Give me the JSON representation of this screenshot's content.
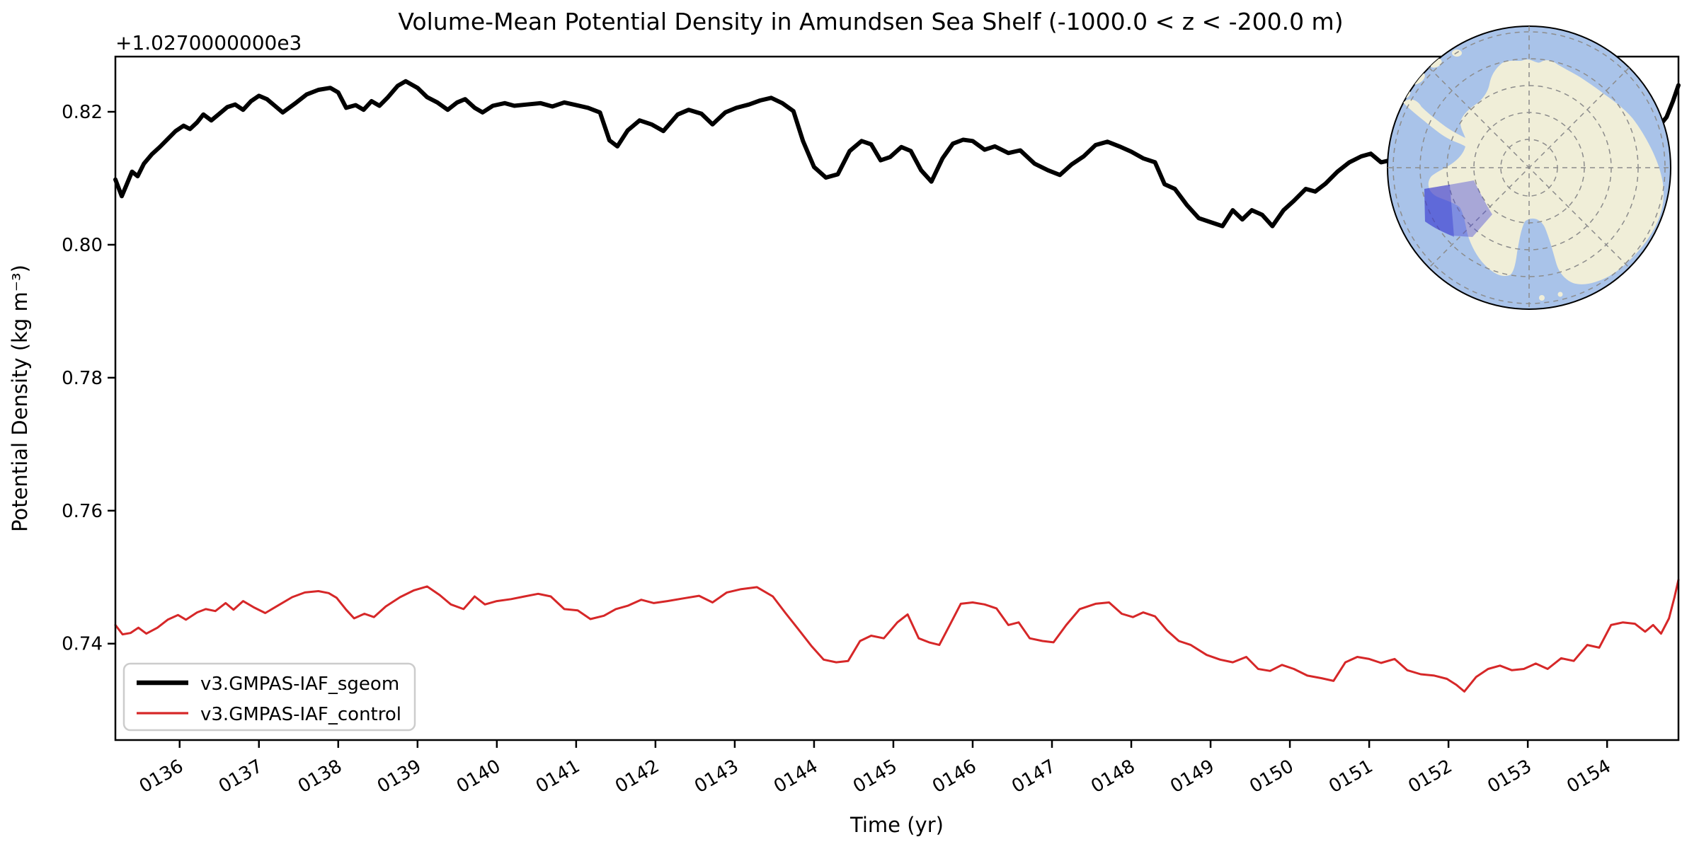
{
  "figure": {
    "title": "Volume-Mean Potential Density in Amundsen Sea Shelf (-1000.0 < z < -200.0 m)",
    "offset_text": "+1.0270000000e3",
    "xlabel": "Time (yr)",
    "ylabel": "Potential Density (kg m⁻³)"
  },
  "chart_data": {
    "type": "line",
    "title": "Volume-Mean Potential Density in Amundsen Sea Shelf (-1000.0 < z < -200.0 m)",
    "xlabel": "Time (yr)",
    "ylabel": "Potential Density (kg m⁻³)",
    "y_axis_offset": 1027.0,
    "y_offset_label": "+1.0270000000e3",
    "xlim": [
      135.19,
      154.9
    ],
    "ylim": [
      0.7255,
      0.8283
    ],
    "grid": false,
    "legend_position": "lower left",
    "x_tick_values": [
      136,
      137,
      138,
      139,
      140,
      141,
      142,
      143,
      144,
      145,
      146,
      147,
      148,
      149,
      150,
      151,
      152,
      153,
      154
    ],
    "x_tick_labels": [
      "0136",
      "0137",
      "0138",
      "0139",
      "0140",
      "0141",
      "0142",
      "0143",
      "0144",
      "0145",
      "0146",
      "0147",
      "0148",
      "0149",
      "0150",
      "0151",
      "0152",
      "0153",
      "0154"
    ],
    "x_tick_rotation_deg": 30,
    "y_tick_values": [
      0.82,
      0.8,
      0.78,
      0.76,
      0.74
    ],
    "y_tick_labels": [
      "0.82",
      "0.80",
      "0.78",
      "0.76",
      "0.74"
    ],
    "series": [
      {
        "name": "v3.GMPAS-IAF_sgeom",
        "color": "#000000",
        "linewidth": 6,
        "points": [
          [
            135.19,
            0.8098
          ],
          [
            135.27,
            0.8073
          ],
          [
            135.33,
            0.809
          ],
          [
            135.4,
            0.811
          ],
          [
            135.47,
            0.8103
          ],
          [
            135.55,
            0.8122
          ],
          [
            135.65,
            0.8136
          ],
          [
            135.75,
            0.8147
          ],
          [
            135.85,
            0.8159
          ],
          [
            135.95,
            0.8171
          ],
          [
            136.05,
            0.8179
          ],
          [
            136.13,
            0.8174
          ],
          [
            136.22,
            0.8184
          ],
          [
            136.3,
            0.8196
          ],
          [
            136.4,
            0.8187
          ],
          [
            136.5,
            0.8197
          ],
          [
            136.6,
            0.8207
          ],
          [
            136.7,
            0.8211
          ],
          [
            136.8,
            0.8203
          ],
          [
            136.9,
            0.8216
          ],
          [
            137.0,
            0.8224
          ],
          [
            137.1,
            0.8219
          ],
          [
            137.2,
            0.8209
          ],
          [
            137.3,
            0.8199
          ],
          [
            137.45,
            0.8212
          ],
          [
            137.6,
            0.8226
          ],
          [
            137.75,
            0.8233
          ],
          [
            137.9,
            0.8236
          ],
          [
            138.0,
            0.8229
          ],
          [
            138.1,
            0.8206
          ],
          [
            138.22,
            0.821
          ],
          [
            138.32,
            0.8203
          ],
          [
            138.42,
            0.8216
          ],
          [
            138.52,
            0.8209
          ],
          [
            138.62,
            0.8221
          ],
          [
            138.75,
            0.8239
          ],
          [
            138.85,
            0.8246
          ],
          [
            139.0,
            0.8236
          ],
          [
            139.12,
            0.8222
          ],
          [
            139.25,
            0.8214
          ],
          [
            139.38,
            0.8203
          ],
          [
            139.5,
            0.8214
          ],
          [
            139.6,
            0.8219
          ],
          [
            139.72,
            0.8206
          ],
          [
            139.82,
            0.8199
          ],
          [
            139.95,
            0.8209
          ],
          [
            140.1,
            0.8213
          ],
          [
            140.22,
            0.8209
          ],
          [
            140.38,
            0.8211
          ],
          [
            140.55,
            0.8213
          ],
          [
            140.7,
            0.8208
          ],
          [
            140.85,
            0.8214
          ],
          [
            141.0,
            0.821
          ],
          [
            141.15,
            0.8206
          ],
          [
            141.3,
            0.8199
          ],
          [
            141.42,
            0.8157
          ],
          [
            141.52,
            0.8148
          ],
          [
            141.65,
            0.8172
          ],
          [
            141.8,
            0.8187
          ],
          [
            141.95,
            0.8181
          ],
          [
            142.1,
            0.8171
          ],
          [
            142.28,
            0.8196
          ],
          [
            142.42,
            0.8203
          ],
          [
            142.58,
            0.8197
          ],
          [
            142.72,
            0.8181
          ],
          [
            142.88,
            0.8199
          ],
          [
            143.02,
            0.8206
          ],
          [
            143.18,
            0.8211
          ],
          [
            143.32,
            0.8217
          ],
          [
            143.46,
            0.8221
          ],
          [
            143.6,
            0.8213
          ],
          [
            143.74,
            0.8201
          ],
          [
            143.86,
            0.8156
          ],
          [
            144.0,
            0.8117
          ],
          [
            144.15,
            0.8101
          ],
          [
            144.3,
            0.8106
          ],
          [
            144.45,
            0.8141
          ],
          [
            144.6,
            0.8156
          ],
          [
            144.72,
            0.8151
          ],
          [
            144.84,
            0.8127
          ],
          [
            144.96,
            0.8132
          ],
          [
            145.1,
            0.8147
          ],
          [
            145.22,
            0.8141
          ],
          [
            145.35,
            0.8112
          ],
          [
            145.48,
            0.8095
          ],
          [
            145.62,
            0.813
          ],
          [
            145.75,
            0.8152
          ],
          [
            145.88,
            0.8158
          ],
          [
            146.0,
            0.8156
          ],
          [
            146.15,
            0.8143
          ],
          [
            146.28,
            0.8148
          ],
          [
            146.45,
            0.8138
          ],
          [
            146.6,
            0.8142
          ],
          [
            146.78,
            0.8122
          ],
          [
            146.95,
            0.8112
          ],
          [
            147.1,
            0.8105
          ],
          [
            147.25,
            0.8121
          ],
          [
            147.4,
            0.8133
          ],
          [
            147.55,
            0.815
          ],
          [
            147.7,
            0.8155
          ],
          [
            147.85,
            0.8148
          ],
          [
            148.0,
            0.814
          ],
          [
            148.15,
            0.813
          ],
          [
            148.3,
            0.8124
          ],
          [
            148.42,
            0.8091
          ],
          [
            148.55,
            0.8084
          ],
          [
            148.7,
            0.806
          ],
          [
            148.85,
            0.804
          ],
          [
            149.0,
            0.8034
          ],
          [
            149.15,
            0.8028
          ],
          [
            149.28,
            0.8052
          ],
          [
            149.4,
            0.8038
          ],
          [
            149.52,
            0.8052
          ],
          [
            149.65,
            0.8045
          ],
          [
            149.78,
            0.8028
          ],
          [
            149.92,
            0.8052
          ],
          [
            150.05,
            0.8066
          ],
          [
            150.2,
            0.8084
          ],
          [
            150.32,
            0.808
          ],
          [
            150.45,
            0.8092
          ],
          [
            150.6,
            0.811
          ],
          [
            150.75,
            0.8124
          ],
          [
            150.9,
            0.8133
          ],
          [
            151.02,
            0.8137
          ],
          [
            151.15,
            0.8124
          ],
          [
            151.3,
            0.8128
          ],
          [
            151.45,
            0.812
          ],
          [
            151.6,
            0.8107
          ],
          [
            151.75,
            0.8101
          ],
          [
            151.95,
            0.8106
          ],
          [
            152.3,
            0.811
          ],
          [
            152.7,
            0.8118
          ],
          [
            153.1,
            0.8128
          ],
          [
            153.5,
            0.8138
          ],
          [
            153.9,
            0.8148
          ],
          [
            154.3,
            0.8158
          ],
          [
            154.6,
            0.817
          ],
          [
            154.75,
            0.8192
          ],
          [
            154.83,
            0.8216
          ],
          [
            154.9,
            0.824
          ]
        ]
      },
      {
        "name": "v3.GMPAS-IAF_control",
        "color": "#d62728",
        "linewidth": 3,
        "points": [
          [
            135.19,
            0.7428
          ],
          [
            135.28,
            0.7414
          ],
          [
            135.38,
            0.7416
          ],
          [
            135.48,
            0.7424
          ],
          [
            135.58,
            0.7415
          ],
          [
            135.72,
            0.7424
          ],
          [
            135.85,
            0.7436
          ],
          [
            135.98,
            0.7443
          ],
          [
            136.08,
            0.7436
          ],
          [
            136.22,
            0.7447
          ],
          [
            136.33,
            0.7452
          ],
          [
            136.45,
            0.7449
          ],
          [
            136.58,
            0.7461
          ],
          [
            136.68,
            0.7451
          ],
          [
            136.8,
            0.7464
          ],
          [
            136.93,
            0.7455
          ],
          [
            137.08,
            0.7446
          ],
          [
            137.25,
            0.7458
          ],
          [
            137.42,
            0.747
          ],
          [
            137.58,
            0.7477
          ],
          [
            137.75,
            0.7479
          ],
          [
            137.88,
            0.7476
          ],
          [
            137.98,
            0.7469
          ],
          [
            138.1,
            0.7451
          ],
          [
            138.2,
            0.7438
          ],
          [
            138.33,
            0.7445
          ],
          [
            138.45,
            0.744
          ],
          [
            138.6,
            0.7456
          ],
          [
            138.78,
            0.747
          ],
          [
            138.95,
            0.748
          ],
          [
            139.12,
            0.7486
          ],
          [
            139.28,
            0.7473
          ],
          [
            139.42,
            0.7459
          ],
          [
            139.58,
            0.7452
          ],
          [
            139.72,
            0.7471
          ],
          [
            139.85,
            0.7459
          ],
          [
            140.0,
            0.7464
          ],
          [
            140.18,
            0.7467
          ],
          [
            140.35,
            0.7471
          ],
          [
            140.52,
            0.7475
          ],
          [
            140.68,
            0.7471
          ],
          [
            140.85,
            0.7452
          ],
          [
            141.02,
            0.745
          ],
          [
            141.18,
            0.7437
          ],
          [
            141.35,
            0.7442
          ],
          [
            141.5,
            0.7452
          ],
          [
            141.65,
            0.7457
          ],
          [
            141.82,
            0.7466
          ],
          [
            141.98,
            0.7461
          ],
          [
            142.15,
            0.7464
          ],
          [
            142.35,
            0.7468
          ],
          [
            142.55,
            0.7472
          ],
          [
            142.72,
            0.7462
          ],
          [
            142.9,
            0.7477
          ],
          [
            143.08,
            0.7482
          ],
          [
            143.28,
            0.7485
          ],
          [
            143.48,
            0.7471
          ],
          [
            143.64,
            0.7446
          ],
          [
            143.8,
            0.7422
          ],
          [
            143.97,
            0.7396
          ],
          [
            144.12,
            0.7376
          ],
          [
            144.28,
            0.7372
          ],
          [
            144.43,
            0.7374
          ],
          [
            144.58,
            0.7404
          ],
          [
            144.72,
            0.7412
          ],
          [
            144.88,
            0.7408
          ],
          [
            145.05,
            0.7432
          ],
          [
            145.18,
            0.7444
          ],
          [
            145.32,
            0.7408
          ],
          [
            145.45,
            0.7402
          ],
          [
            145.58,
            0.7398
          ],
          [
            145.72,
            0.743
          ],
          [
            145.85,
            0.746
          ],
          [
            146.0,
            0.7462
          ],
          [
            146.15,
            0.7459
          ],
          [
            146.3,
            0.7453
          ],
          [
            146.45,
            0.7428
          ],
          [
            146.58,
            0.7432
          ],
          [
            146.72,
            0.7408
          ],
          [
            146.88,
            0.7404
          ],
          [
            147.02,
            0.7402
          ],
          [
            147.18,
            0.7428
          ],
          [
            147.35,
            0.7452
          ],
          [
            147.55,
            0.746
          ],
          [
            147.72,
            0.7462
          ],
          [
            147.88,
            0.7445
          ],
          [
            148.02,
            0.744
          ],
          [
            148.15,
            0.7447
          ],
          [
            148.3,
            0.7441
          ],
          [
            148.45,
            0.742
          ],
          [
            148.6,
            0.7404
          ],
          [
            148.75,
            0.7398
          ],
          [
            148.95,
            0.7383
          ],
          [
            149.12,
            0.7376
          ],
          [
            149.28,
            0.7372
          ],
          [
            149.45,
            0.738
          ],
          [
            149.6,
            0.7362
          ],
          [
            149.75,
            0.7359
          ],
          [
            149.9,
            0.7368
          ],
          [
            150.05,
            0.7362
          ],
          [
            150.22,
            0.7352
          ],
          [
            150.4,
            0.7348
          ],
          [
            150.55,
            0.7344
          ],
          [
            150.7,
            0.7372
          ],
          [
            150.85,
            0.738
          ],
          [
            151.0,
            0.7377
          ],
          [
            151.15,
            0.7371
          ],
          [
            151.32,
            0.7377
          ],
          [
            151.48,
            0.736
          ],
          [
            151.65,
            0.7354
          ],
          [
            151.82,
            0.7352
          ],
          [
            151.98,
            0.7347
          ],
          [
            152.1,
            0.7338
          ],
          [
            152.2,
            0.7328
          ],
          [
            152.35,
            0.735
          ],
          [
            152.5,
            0.7362
          ],
          [
            152.65,
            0.7367
          ],
          [
            152.8,
            0.736
          ],
          [
            152.95,
            0.7362
          ],
          [
            153.1,
            0.737
          ],
          [
            153.25,
            0.7362
          ],
          [
            153.42,
            0.7378
          ],
          [
            153.58,
            0.7374
          ],
          [
            153.75,
            0.7398
          ],
          [
            153.9,
            0.7394
          ],
          [
            154.05,
            0.7428
          ],
          [
            154.2,
            0.7432
          ],
          [
            154.35,
            0.743
          ],
          [
            154.48,
            0.7418
          ],
          [
            154.58,
            0.7428
          ],
          [
            154.68,
            0.7415
          ],
          [
            154.78,
            0.7438
          ],
          [
            154.85,
            0.747
          ],
          [
            154.9,
            0.7496
          ]
        ]
      }
    ]
  },
  "inset_map": {
    "description": "South polar stereographic map of Antarctica with Amundsen Sea shelf region highlighted",
    "ocean_color": "#a9c3e9",
    "land_color": "#f0eed8",
    "coast_color": "#b4b6a0",
    "graticule_color": "#8c8c8c",
    "region_fill": "rgba(70,70,215,0.42)",
    "region_dark_fill": "rgba(45,45,205,0.38)",
    "region_stroke": "#2a2ad0"
  }
}
